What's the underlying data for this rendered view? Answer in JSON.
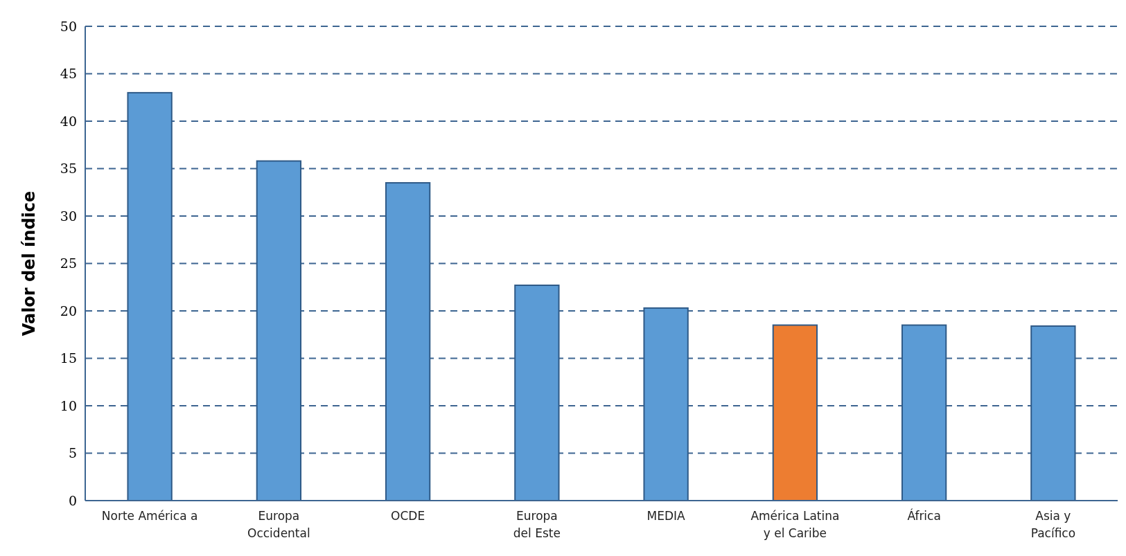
{
  "chart_data": {
    "type": "bar",
    "ylabel": "Valor del índice",
    "categories": [
      "Norte América a",
      "Europa\nOccidental",
      "OCDE",
      "Europa\ndel Este",
      "MEDIA",
      "América Latina\ny el Caribe",
      "África",
      "Asia y\nPacífico"
    ],
    "values": [
      43,
      35.8,
      33.5,
      22.7,
      20.3,
      18.5,
      18.5,
      18.4
    ],
    "colors": [
      "#5b9bd5",
      "#5b9bd5",
      "#5b9bd5",
      "#5b9bd5",
      "#5b9bd5",
      "#ed7d31",
      "#5b9bd5",
      "#5b9bd5"
    ],
    "ylim": [
      0,
      50
    ],
    "yticks": [
      0,
      5,
      10,
      15,
      20,
      25,
      30,
      35,
      40,
      45,
      50
    ],
    "grid": "y"
  }
}
